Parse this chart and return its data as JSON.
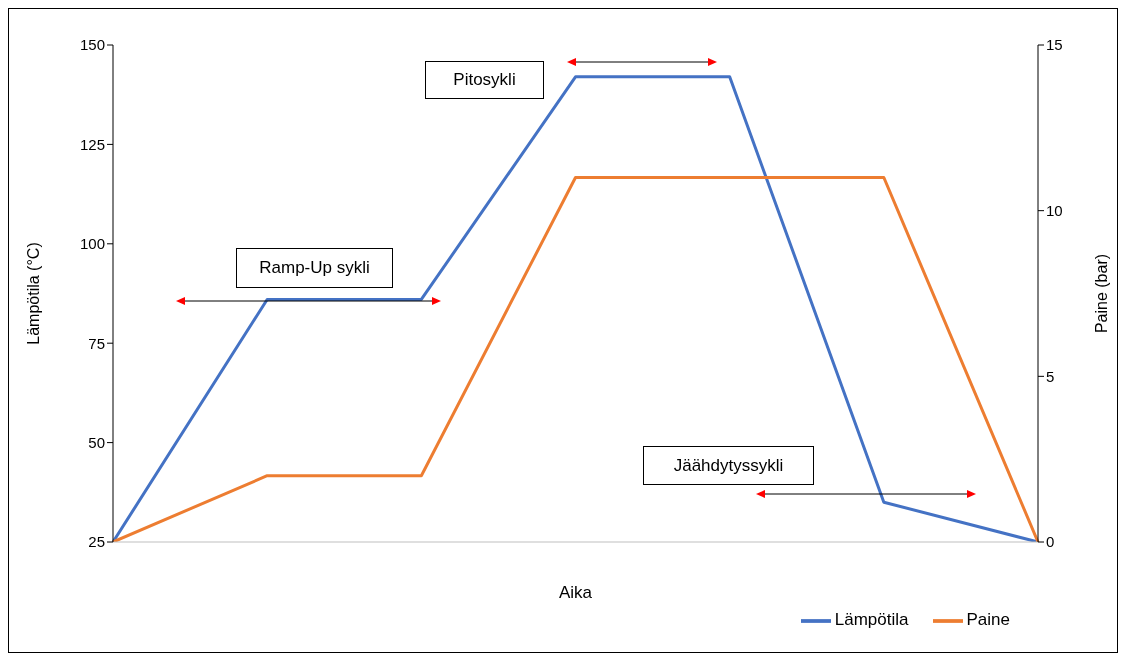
{
  "chart_data": {
    "type": "line",
    "xlabel": "Aika",
    "ylabel": "Lämpötila (°C)",
    "y2label": "Paine (bar)",
    "categories": [
      null,
      null,
      null,
      null,
      null,
      null,
      null
    ],
    "series": [
      {
        "name": "Lämpötila",
        "color": "#4472c4",
        "values": [
          25,
          86,
          86,
          142,
          142,
          35,
          25
        ]
      },
      {
        "name": "Paine",
        "color": "#ed7d31",
        "axis": "y2",
        "values": [
          0,
          2,
          2,
          11,
          11,
          11,
          0
        ]
      }
    ],
    "ylim": [
      25,
      150
    ],
    "yticks": [
      25,
      50,
      75,
      100,
      125,
      150
    ],
    "y2lim": [
      0,
      15
    ],
    "y2ticks": [
      0,
      5,
      10,
      15
    ],
    "annotations": [
      "Ramp-Up sykli",
      "Pitosykli",
      "Jäähdytyssykli"
    ],
    "legend": "bottom right",
    "grid": false,
    "line_style": "solid"
  }
}
